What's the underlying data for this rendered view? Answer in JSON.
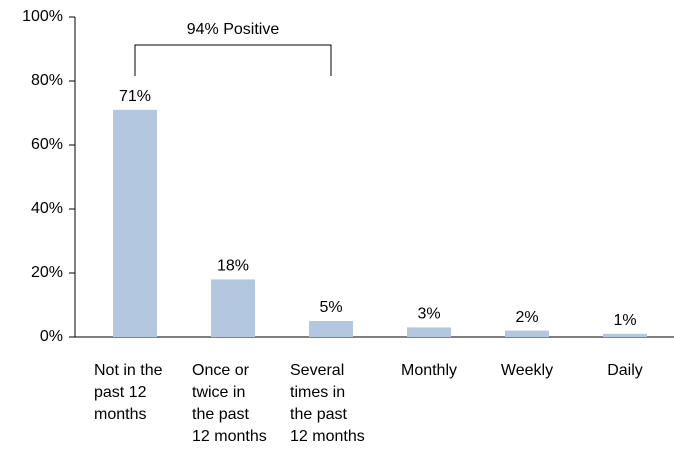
{
  "chart_data": {
    "type": "bar",
    "categories": [
      "Not in the\npast 12\nmonths",
      "Once or\ntwice in\nthe past\n12 months",
      "Several\ntimes in\nthe past\n12 months",
      "Monthly",
      "Weekly",
      "Daily"
    ],
    "values": [
      71,
      18,
      5,
      3,
      2,
      1
    ],
    "value_labels": [
      "71%",
      "18%",
      "5%",
      "3%",
      "2%",
      "1%"
    ],
    "color": "#b4c7e1",
    "ylim": [
      0,
      100
    ],
    "yticks": [
      {
        "value": 0,
        "label": "0%"
      },
      {
        "value": 20,
        "label": "20%"
      },
      {
        "value": 40,
        "label": "40%"
      },
      {
        "value": 60,
        "label": "60%"
      },
      {
        "value": 80,
        "label": "80%"
      },
      {
        "value": 100,
        "label": "100%"
      }
    ],
    "annotation": "94% Positive"
  }
}
